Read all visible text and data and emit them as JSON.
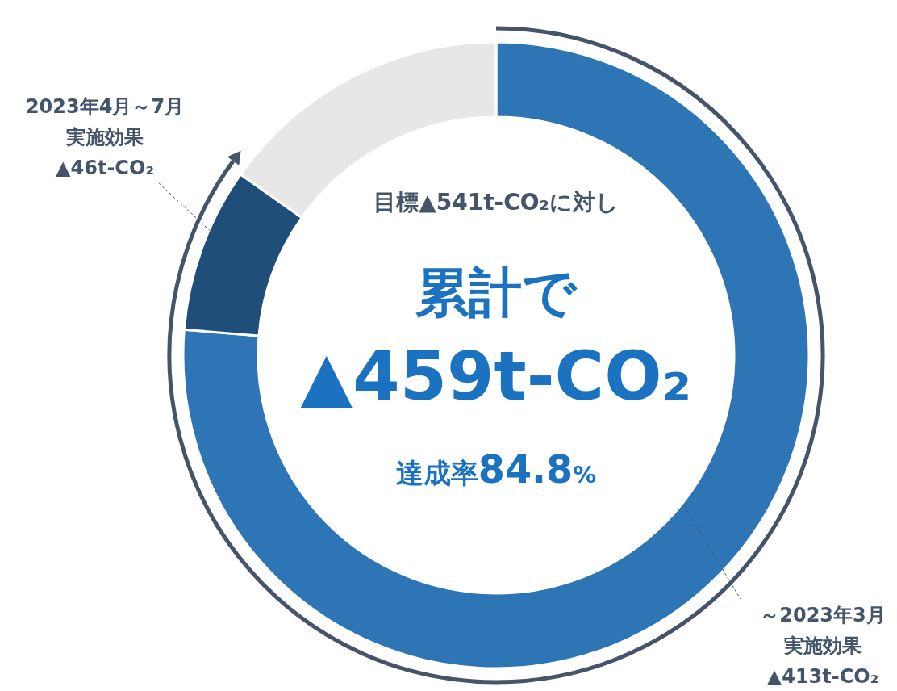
{
  "chart_data": {
    "type": "donut",
    "categories": [
      "～2023年3月実施効果▲413t-CO₂",
      "2023年4月～7月実施効果▲46t-CO₂",
      null
    ],
    "values": [
      76.3,
      8.5,
      15.2
    ],
    "colors": [
      "#2e75b6",
      "#1f4e79",
      "#e7e7e7"
    ],
    "annotations": [
      "目標▲541t-CO₂に対し",
      "累計で",
      "▲459t-CO₂",
      "達成率84.8%"
    ]
  }
}
